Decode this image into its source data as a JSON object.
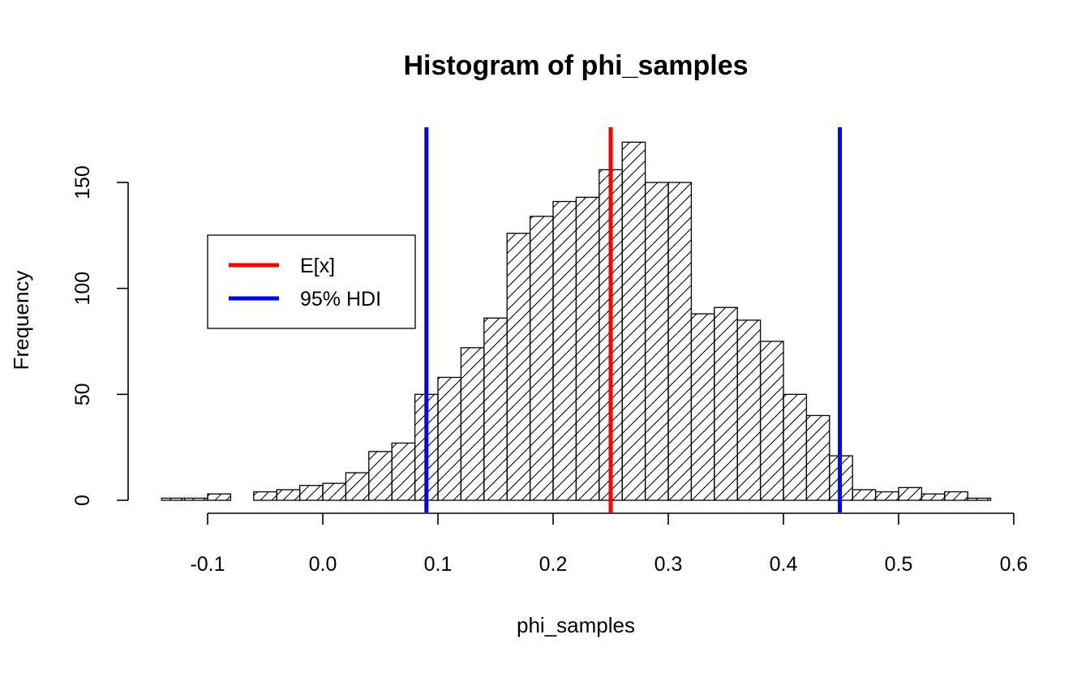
{
  "chart_data": {
    "type": "bar",
    "title": "Histogram of phi_samples",
    "xlabel": "phi_samples",
    "ylabel": "Frequency",
    "x_ticks": [
      "-0.1",
      "0.0",
      "0.1",
      "0.2",
      "0.3",
      "0.4",
      "0.5",
      "0.6"
    ],
    "x_tick_values": [
      -0.1,
      0.0,
      0.1,
      0.2,
      0.3,
      0.4,
      0.5,
      0.6
    ],
    "y_ticks": [
      "0",
      "50",
      "100",
      "150"
    ],
    "y_tick_values": [
      0,
      50,
      100,
      150
    ],
    "xlim": [
      -0.14,
      0.6
    ],
    "ylim": [
      0,
      170
    ],
    "bin_width": 0.02,
    "bin_start": -0.14,
    "counts": [
      1,
      1,
      3,
      0,
      4,
      5,
      7,
      8,
      13,
      23,
      27,
      50,
      58,
      72,
      86,
      126,
      134,
      141,
      143,
      156,
      169,
      150,
      150,
      88,
      91,
      85,
      75,
      50,
      40,
      21,
      5,
      4,
      6,
      3,
      4,
      1
    ],
    "bar_fill": "hatched",
    "vlines": [
      {
        "name": "E[x]",
        "x": 0.25,
        "color": "#ff0000"
      },
      {
        "name": "95% HDI",
        "x": 0.09,
        "color": "#0000ff"
      },
      {
        "name": "95% HDI",
        "x": 0.449,
        "color": "#0000ff"
      }
    ],
    "legend": {
      "position": "top-left",
      "entries": [
        {
          "label": "E[x]",
          "color": "#ff0000"
        },
        {
          "label": "95% HDI",
          "color": "#0000ff"
        }
      ]
    },
    "grid": false
  }
}
